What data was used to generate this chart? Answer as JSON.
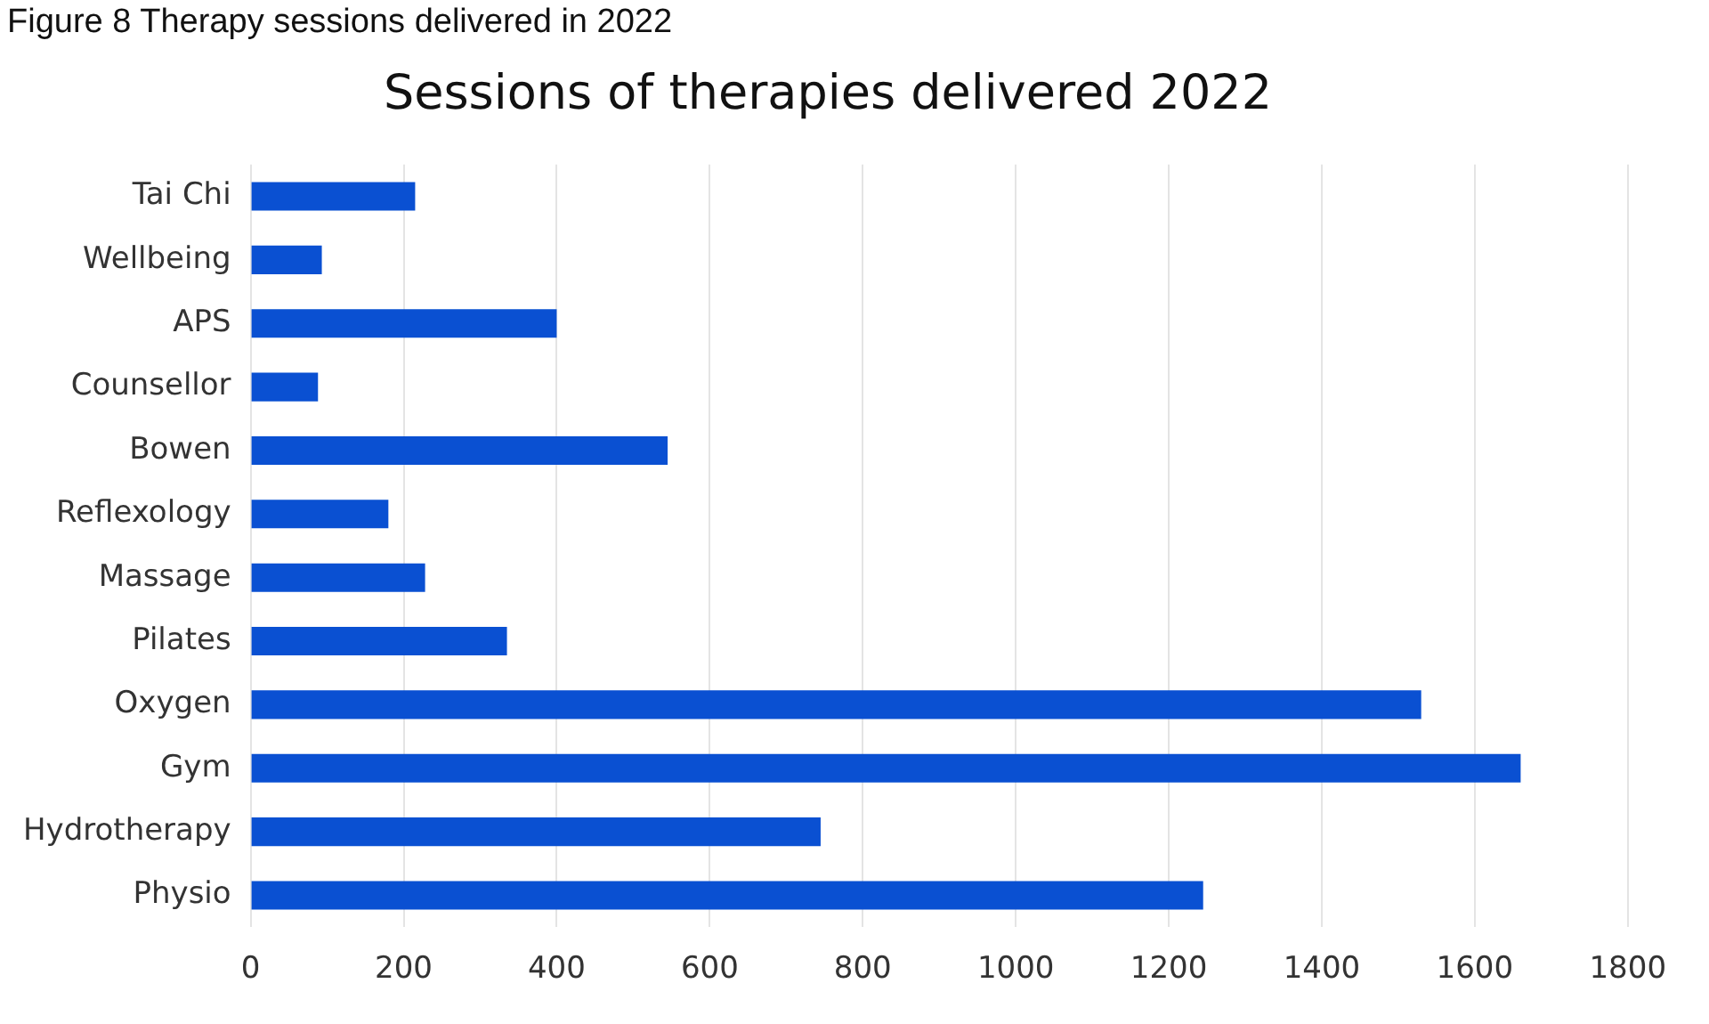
{
  "chart_data": {
    "type": "bar",
    "orientation": "horizontal",
    "title": "Sessions of therapies delivered 2022",
    "annotations": [
      "Figure 8 Therapy sessions delivered in 2022"
    ],
    "categories": [
      "Tai Chi",
      "Wellbeing",
      "APS",
      "Counsellor",
      "Bowen",
      "Reflexology",
      "Massage",
      "Pilates",
      "Oxygen",
      "Gym",
      "Hydrotherapy",
      "Physio"
    ],
    "values": [
      215,
      93,
      400,
      88,
      545,
      180,
      228,
      335,
      1530,
      1660,
      745,
      1245
    ],
    "color": "#0a50d2",
    "xlim": [
      0,
      1800
    ],
    "xticks": [
      0,
      200,
      400,
      600,
      800,
      1000,
      1200,
      1400,
      1600,
      1800
    ],
    "grid": "x",
    "legend": false
  }
}
